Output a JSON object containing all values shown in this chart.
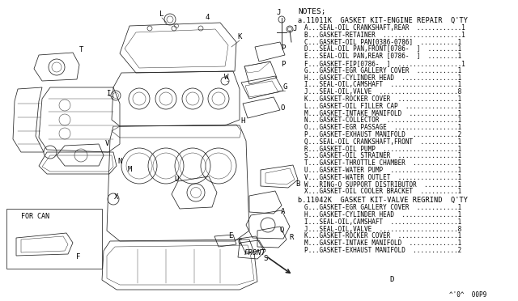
{
  "bg_color": "#ffffff",
  "fig_width": 6.4,
  "fig_height": 3.72,
  "dpi": 100,
  "notes_title": "NOTES;",
  "section_a_title": "a.11011K  GASKET KIT-ENGINE REPAIR  Q'TY",
  "section_a_items": [
    "A...SEAL-OIL CRANKSHAFT,REAR  ............1",
    "B...GASKET-RETAINER  .....................1",
    "C...GASKET-OIL PAN[0386-0786]  ..........1",
    "D...SEAL-OIL PAN,FRONT[0786-  ]  ........1",
    "E...SEAL-OIL PAN,REAR [0786-  ]  ........1",
    "F...GASKET-FIP[0786-  ]  .................1",
    "G...GASKET-EGR GALLERY COVER  ...........1",
    "H...GASKET-CYLINDER HEAD  ...............1",
    "I...SEAL-OIL,CAMSHAFT  ..................1",
    "J...SEAL-OIL,VALVE  .....................8",
    "K...GASKET-ROCKER COVER  ................1",
    "L...GASKET-OIL FILLER CAP  ..............1",
    "M...GASKET-INTAKE MANIFOLD  .............1",
    "N...GASKET-COLLECTOR  ...................1",
    "O...GASKET-EGR PASSAGE  .................1",
    "P...GASKET-EXHAUST MANIFOLD  ............2",
    "Q...SEAL-OIL CRANKSHAFT,FRONT  ..........1",
    "R...GASKET-OIL PUMP  ....................1",
    "S...GASKET-OIL STRAINER  ................1",
    "T...GASKET-THROTTLE CHAMBER  ............1",
    "U...GASKET-WATER PUMP  ..................1",
    "V...GASKET-WATER OUTLET  ................1",
    "W...RING-O SUPPORT DISTRIBUTOR  .........1",
    "X...GASKET-OIL COOLER BRACKET  ..........1"
  ],
  "section_b_title": "b.11042K  GASKET KIT-VALVE REGRIND  Q'TY",
  "section_b_items": [
    "G...GASKET-EGR GALLERY COVER  ...........1",
    "H...GASKET-CYLINDER HEAD  ...............1",
    "I...SEAL-OIL,CAMSHAFT  ..................1",
    "J...SEAL-OIL,VALVE  .....................8",
    "K...GASKET-ROCKER COVER  ................1",
    "M...GASKET-INTAKE MANIFOLD  .............1",
    "P...GASKET-EXHAUST MANIFOLD  ............2"
  ],
  "footer": "^'0^  00P9",
  "for_can_label": "FOR CAN",
  "front_label": "FRONT",
  "text_color": "#000000",
  "font_family": "monospace",
  "notes_fontsize": 6.8,
  "title_fontsize": 6.2,
  "item_fontsize": 5.5
}
